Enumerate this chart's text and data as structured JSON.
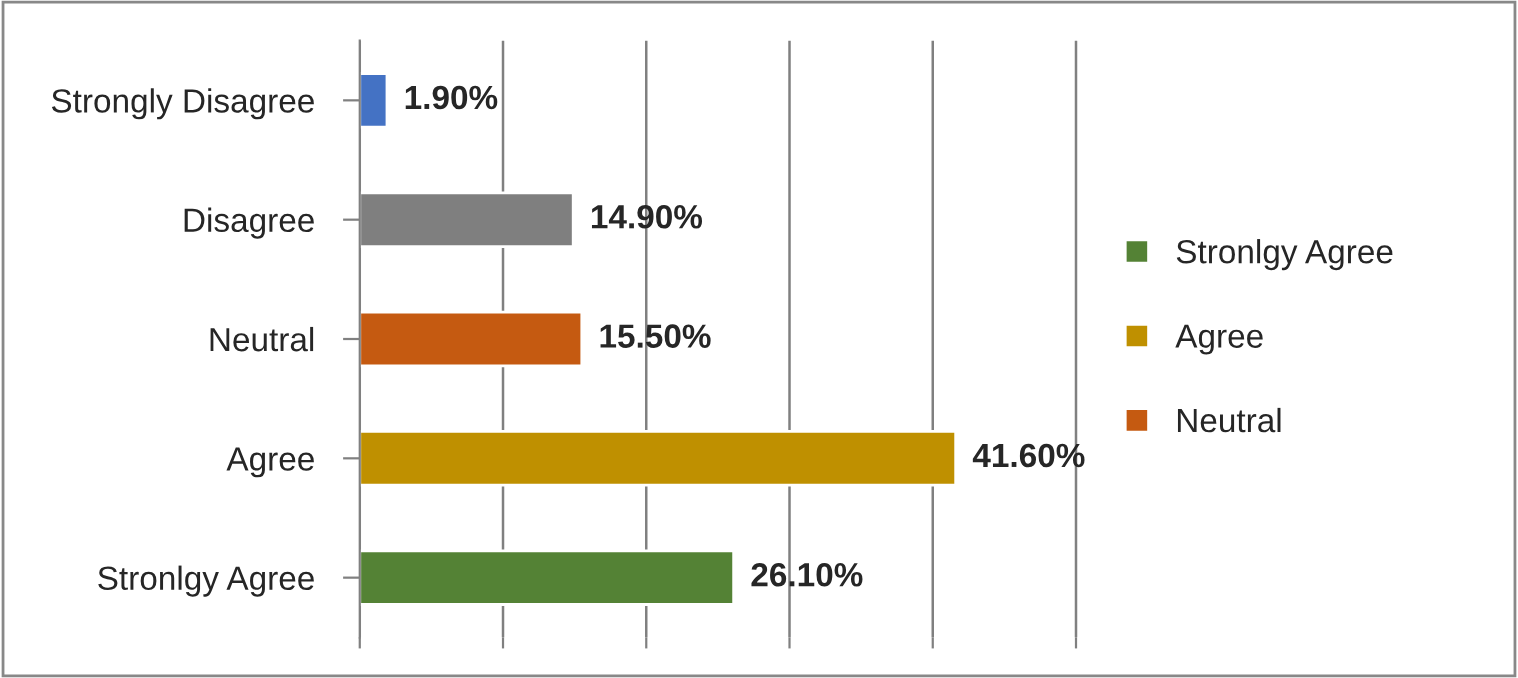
{
  "chart_data": {
    "type": "bar",
    "orientation": "horizontal",
    "categories": [
      "Strongly Disagree",
      "Disagree",
      "Neutral",
      "Agree",
      "Stronlgy Agree"
    ],
    "series": [
      {
        "name": "Stronlgy Agree",
        "color": "#548235",
        "values": [
          null,
          null,
          null,
          null,
          26.1
        ],
        "value_labels": [
          null,
          null,
          null,
          null,
          "26.10%"
        ]
      },
      {
        "name": "Agree",
        "color": "#bf9000",
        "values": [
          null,
          null,
          null,
          41.6,
          null
        ],
        "value_labels": [
          null,
          null,
          null,
          "41.60%",
          null
        ]
      },
      {
        "name": "Neutral",
        "color": "#c55a11",
        "values": [
          null,
          null,
          15.5,
          null,
          null
        ],
        "value_labels": [
          null,
          null,
          "15.50%",
          null,
          null
        ]
      },
      {
        "color": "#7f7f7f",
        "values": [
          null,
          14.9,
          null,
          null,
          null
        ],
        "value_labels": [
          null,
          "14.90%",
          null,
          null,
          null
        ]
      },
      {
        "color": "#4472c4",
        "values": [
          1.9,
          null,
          null,
          null,
          null
        ],
        "value_labels": [
          "1.90%",
          null,
          null,
          null,
          null
        ]
      }
    ],
    "grid": "x",
    "legend": "right"
  }
}
